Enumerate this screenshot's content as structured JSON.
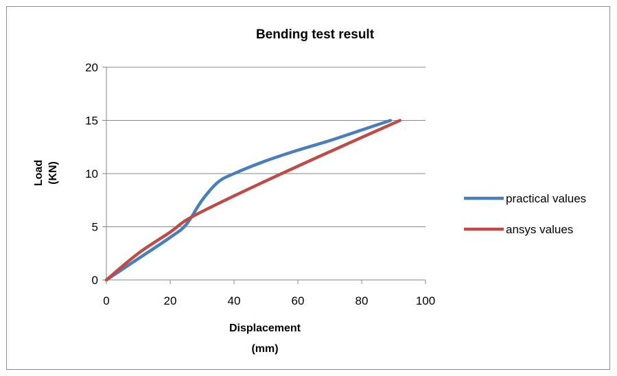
{
  "chart_data": {
    "type": "line",
    "title": "Bending test result",
    "xlabel": [
      "Displacement",
      "(mm)"
    ],
    "ylabel": [
      "Load",
      "(KN)"
    ],
    "xlim": [
      0,
      100
    ],
    "ylim": [
      0,
      20
    ],
    "xticks": [
      "0",
      "20",
      "40",
      "60",
      "80",
      "100"
    ],
    "yticks": [
      "0",
      "5",
      "10",
      "15",
      "20"
    ],
    "grid": "horizontal",
    "legend_position": "right",
    "series": [
      {
        "name": "practical values",
        "color": "#4a7ebb",
        "points": [
          [
            0,
            0
          ],
          [
            10,
            2
          ],
          [
            20,
            4
          ],
          [
            25,
            5.2
          ],
          [
            30,
            7.5
          ],
          [
            35,
            9.2
          ],
          [
            40,
            10
          ],
          [
            50,
            11.2
          ],
          [
            60,
            12.2
          ],
          [
            70,
            13.1
          ],
          [
            80,
            14.1
          ],
          [
            89,
            15
          ]
        ]
      },
      {
        "name": "ansys values",
        "color": "#be4b48",
        "points": [
          [
            0,
            0
          ],
          [
            10,
            2.5
          ],
          [
            20,
            4.5
          ],
          [
            26,
            5.8
          ],
          [
            40,
            7.9
          ],
          [
            60,
            10.7
          ],
          [
            80,
            13.4
          ],
          [
            92,
            15
          ]
        ]
      }
    ]
  }
}
